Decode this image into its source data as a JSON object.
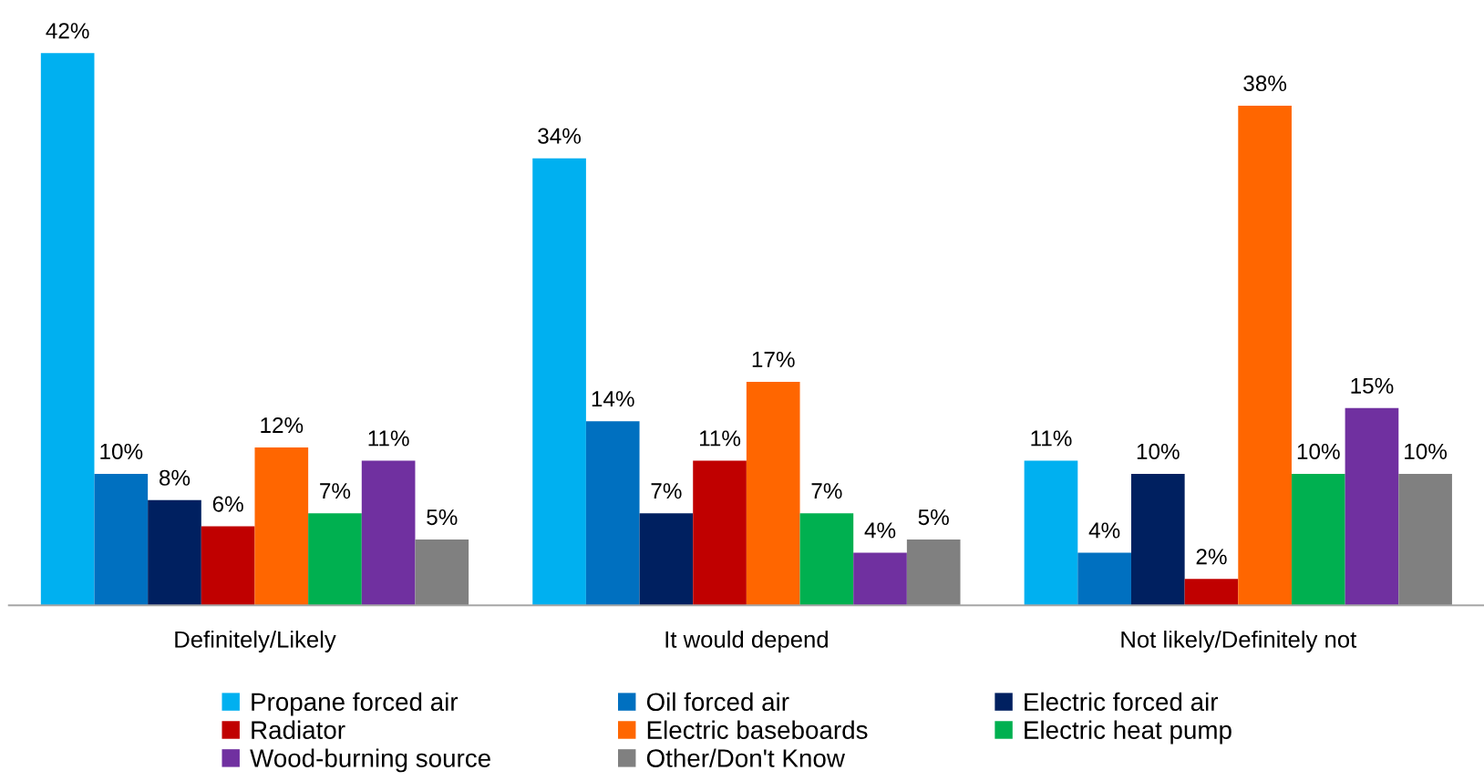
{
  "chart_data": {
    "type": "bar",
    "categories": [
      "Definitely/Likely",
      "It would depend",
      "Not likely/Definitely not"
    ],
    "series": [
      {
        "name": "Propane forced air",
        "color": "#00b0f0",
        "values": [
          42,
          34,
          11
        ],
        "value_labels": [
          "42%",
          "34%",
          "11%"
        ]
      },
      {
        "name": "Oil forced air",
        "color": "#0070c0",
        "values": [
          10,
          14,
          4
        ],
        "value_labels": [
          "10%",
          "14%",
          "4%"
        ]
      },
      {
        "name": "Electric forced air",
        "color": "#002060",
        "values": [
          8,
          7,
          10
        ],
        "value_labels": [
          "8%",
          "7%",
          "10%"
        ]
      },
      {
        "name": "Radiator",
        "color": "#c00000",
        "values": [
          6,
          11,
          2
        ],
        "value_labels": [
          "6%",
          "11%",
          "2%"
        ]
      },
      {
        "name": "Electric baseboards",
        "color": "#ff6600",
        "values": [
          12,
          17,
          38
        ],
        "value_labels": [
          "12%",
          "17%",
          "38%"
        ]
      },
      {
        "name": "Electric heat pump",
        "color": "#00b050",
        "values": [
          7,
          7,
          10
        ],
        "value_labels": [
          "7%",
          "7%",
          "10%"
        ]
      },
      {
        "name": "Wood-burning source",
        "color": "#7030a0",
        "values": [
          11,
          4,
          15
        ],
        "value_labels": [
          "11%",
          "4%",
          "15%"
        ]
      },
      {
        "name": "Other/Don't Know",
        "color": "#808080",
        "values": [
          5,
          5,
          10
        ],
        "value_labels": [
          "5%",
          "5%",
          "10%"
        ]
      }
    ],
    "legend": "bottom",
    "tick_labels": "x"
  }
}
